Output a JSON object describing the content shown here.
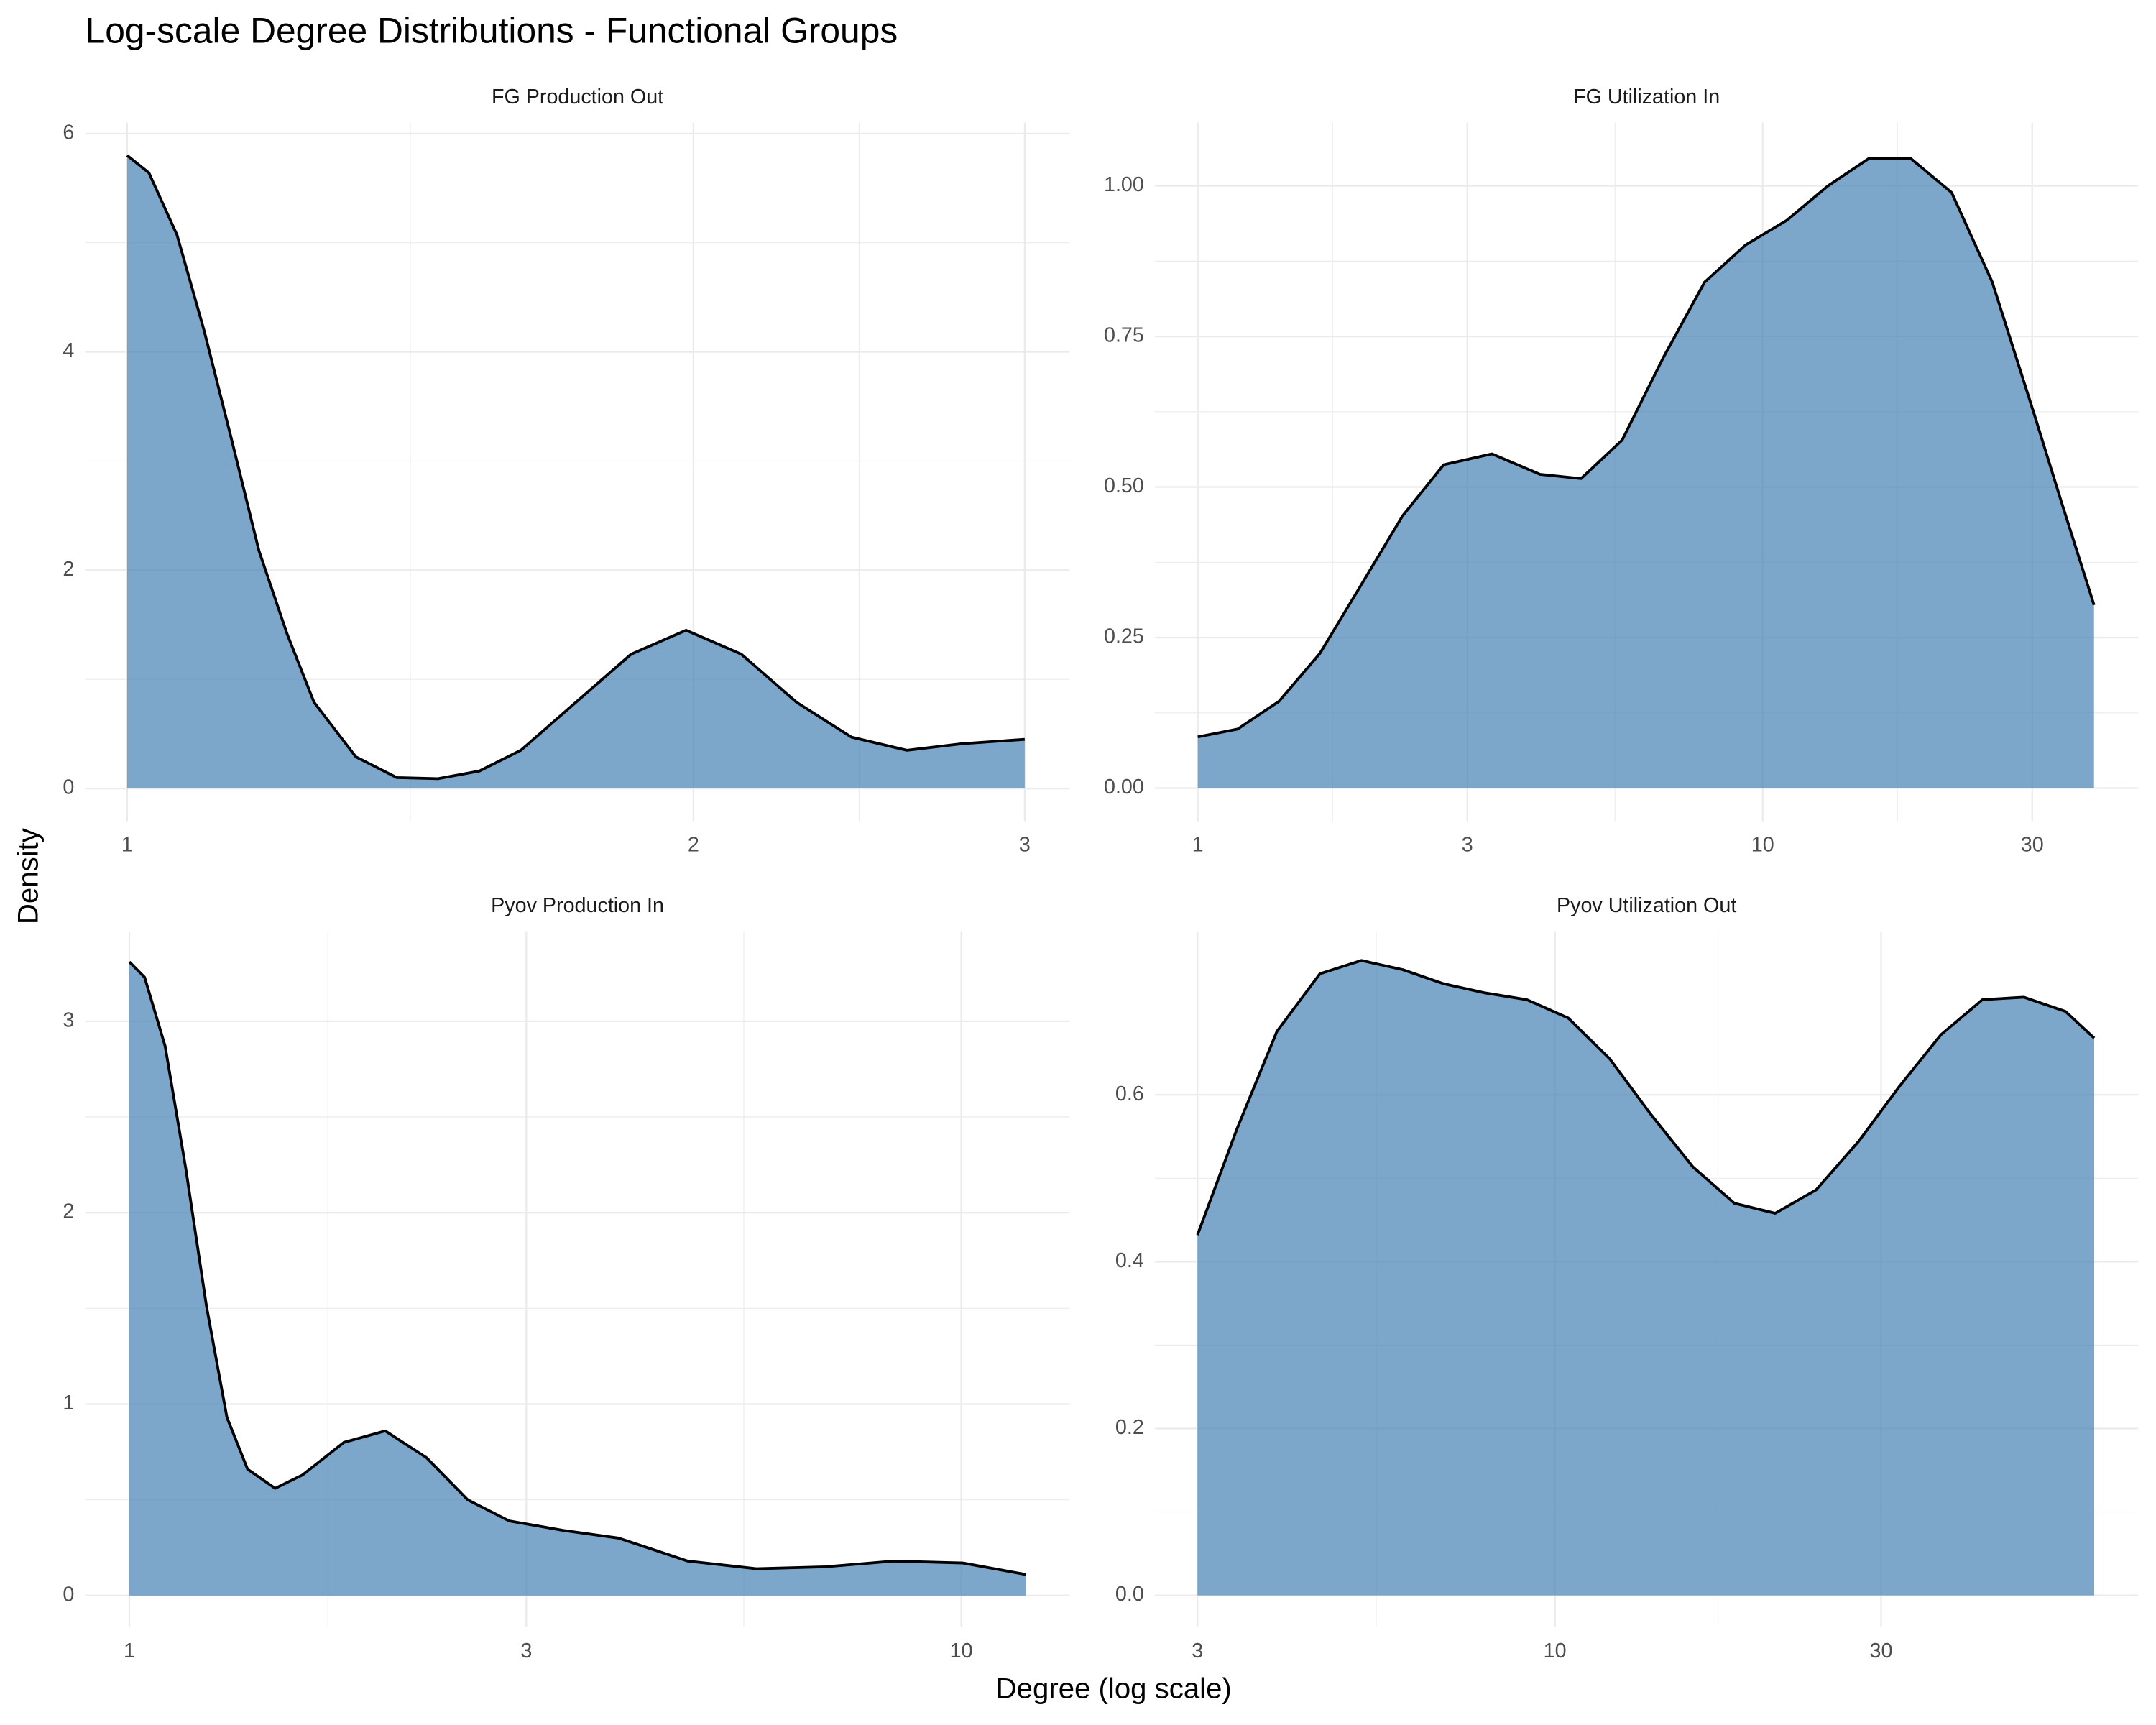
{
  "title": "Log-scale Degree Distributions - Functional Groups",
  "x_label": "Degree (log scale)",
  "y_label": "Density",
  "chart_data": [
    {
      "type": "area",
      "title": "FG Production Out",
      "xscale": "log",
      "grid": true,
      "color": "#4682b4",
      "alpha": 0.7,
      "x": [
        1,
        1.027,
        1.063,
        1.099,
        1.137,
        1.175,
        1.216,
        1.257,
        1.323,
        1.391,
        1.463,
        1.539,
        1.619,
        1.732,
        1.853,
        1.982,
        2.121,
        2.269,
        2.427,
        2.597,
        2.778,
        3
      ],
      "values": [
        5.8,
        5.64,
        5.07,
        4.19,
        3.18,
        2.18,
        1.42,
        0.79,
        0.29,
        0.1,
        0.09,
        0.16,
        0.35,
        0.79,
        1.23,
        1.45,
        1.23,
        0.79,
        0.47,
        0.35,
        0.41,
        0.45
      ],
      "xlim": [
        0.95,
        3.17
      ],
      "ylim": [
        -0.3,
        6.1
      ],
      "xticks": [
        1,
        2,
        3
      ],
      "yticks": [
        0,
        2,
        4,
        6
      ]
    },
    {
      "type": "area",
      "title": "FG Utilization In",
      "xscale": "log",
      "grid": true,
      "color": "#4682b4",
      "alpha": 0.7,
      "x": [
        1,
        1.176,
        1.392,
        1.646,
        1.948,
        2.304,
        2.725,
        3.318,
        4.036,
        4.77,
        5.64,
        6.67,
        7.89,
        9.33,
        11.04,
        13.05,
        15.44,
        18.26,
        21.6,
        25.5,
        30.2,
        33.8,
        38.6
      ],
      "values": [
        0.085,
        0.098,
        0.144,
        0.224,
        0.338,
        0.452,
        0.537,
        0.555,
        0.521,
        0.514,
        0.578,
        0.715,
        0.84,
        0.902,
        0.943,
        1.0,
        1.046,
        1.046,
        0.989,
        0.84,
        0.623,
        0.475,
        0.304
      ],
      "xlim": [
        0.84,
        46.2
      ],
      "ylim": [
        -0.055,
        1.105
      ],
      "xticks": [
        1,
        3,
        10,
        30
      ],
      "yticks": [
        {
          "value": 0,
          "label": "0.00"
        },
        {
          "value": 0.25,
          "label": "0.25"
        },
        {
          "value": 0.5,
          "label": "0.50"
        },
        {
          "value": 0.75,
          "label": "0.75"
        },
        {
          "value": 1,
          "label": "1.00"
        }
      ]
    },
    {
      "type": "area",
      "title": "Pyov Production In",
      "xscale": "log",
      "grid": true,
      "color": "#4682b4",
      "alpha": 0.7,
      "x": [
        1,
        1.043,
        1.104,
        1.169,
        1.238,
        1.31,
        1.387,
        1.497,
        1.615,
        1.811,
        2.03,
        2.276,
        2.551,
        2.86,
        3.325,
        3.873,
        4.69,
        5.67,
        6.86,
        8.3,
        10.04,
        11.95
      ],
      "values": [
        3.31,
        3.23,
        2.87,
        2.23,
        1.51,
        0.93,
        0.66,
        0.56,
        0.63,
        0.8,
        0.86,
        0.72,
        0.5,
        0.39,
        0.34,
        0.3,
        0.18,
        0.14,
        0.15,
        0.18,
        0.17,
        0.11
      ],
      "xlim": [
        0.885,
        13.5
      ],
      "ylim": [
        -0.165,
        3.47
      ],
      "xticks": [
        1,
        3,
        10
      ],
      "yticks": [
        0,
        1,
        2,
        3
      ]
    },
    {
      "type": "area",
      "title": "Pyov Utilization Out",
      "xscale": "log",
      "grid": true,
      "color": "#4682b4",
      "alpha": 0.7,
      "x": [
        3,
        3.43,
        3.92,
        4.53,
        5.21,
        5.99,
        6.88,
        7.92,
        9.1,
        10.46,
        12.03,
        13.8,
        15.9,
        18.3,
        21,
        24.1,
        27.8,
        31.9,
        36.7,
        42.2,
        48.5,
        55.8,
        61.5
      ],
      "values": [
        0.432,
        0.56,
        0.676,
        0.745,
        0.761,
        0.75,
        0.733,
        0.722,
        0.714,
        0.692,
        0.643,
        0.577,
        0.514,
        0.47,
        0.458,
        0.486,
        0.544,
        0.61,
        0.672,
        0.714,
        0.717,
        0.7,
        0.668
      ],
      "xlim": [
        2.6,
        71.3
      ],
      "ylim": [
        -0.038,
        0.796
      ],
      "xticks": [
        3,
        10,
        30
      ],
      "yticks": [
        {
          "value": 0,
          "label": "0.0"
        },
        {
          "value": 0.2,
          "label": "0.2"
        },
        {
          "value": 0.4,
          "label": "0.4"
        },
        {
          "value": 0.6,
          "label": "0.6"
        }
      ]
    }
  ]
}
